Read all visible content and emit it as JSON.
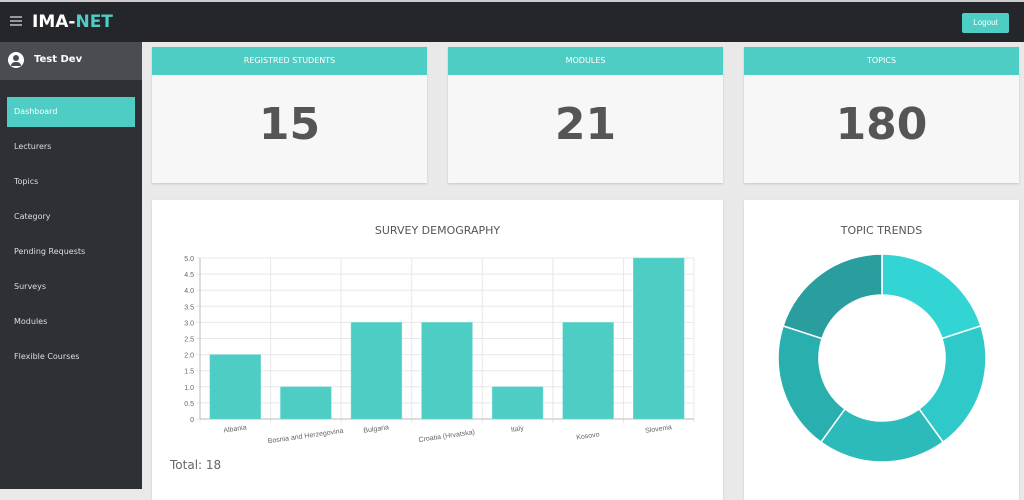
{
  "header": {
    "brand_a": "IMA-",
    "brand_b": "NET",
    "logout": "Logout"
  },
  "sidebar": {
    "user": "Test Dev",
    "items": [
      {
        "label": "Dashboard",
        "active": true
      },
      {
        "label": "Lecturers"
      },
      {
        "label": "Topics"
      },
      {
        "label": "Category"
      },
      {
        "label": "Pending Requests"
      },
      {
        "label": "Surveys"
      },
      {
        "label": "Modules"
      },
      {
        "label": "Flexible Courses"
      }
    ]
  },
  "stats": [
    {
      "label": "REGISTRED STUDENTS",
      "value": "15"
    },
    {
      "label": "MODULES",
      "value": "21"
    },
    {
      "label": "TOPICS",
      "value": "180"
    }
  ],
  "survey": {
    "title": "SURVEY DEMOGRAPHY",
    "total": "Total: 18"
  },
  "trends": {
    "title": "TOPIC TRENDS"
  },
  "chart_data": [
    {
      "type": "bar",
      "categories": [
        "Albania",
        "Bosnia and Herzegovina",
        "Bulgaria",
        "Croatia (Hrvatska)",
        "Italy",
        "Kosovo",
        "Slovenia"
      ],
      "values": [
        2,
        1,
        3,
        3,
        1,
        3,
        5
      ],
      "ylim": [
        0,
        5
      ],
      "yticks": [
        "0",
        "0.5",
        "1.0",
        "1.5",
        "2.0",
        "2.5",
        "3.0",
        "3.5",
        "4.0",
        "4.5",
        "5.0"
      ],
      "grid": true,
      "color": "#4ecdc4"
    },
    {
      "type": "pie",
      "donut": true,
      "values": [
        1,
        1,
        1,
        1,
        1
      ],
      "colors": [
        "#33d4d4",
        "#30c9c9",
        "#2dbaba",
        "#2aafaf",
        "#2a9e9e"
      ]
    }
  ]
}
